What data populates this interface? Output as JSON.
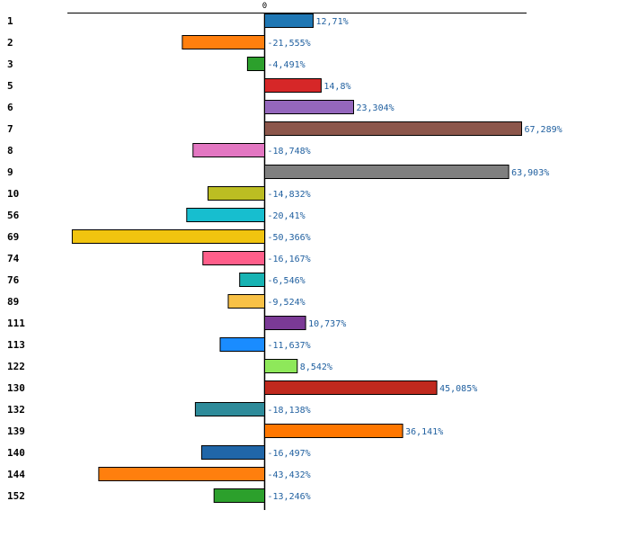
{
  "chart_data": {
    "type": "bar",
    "orientation": "horizontal",
    "title": "",
    "xlabel": "",
    "ylabel": "",
    "zero_tick_label": "0",
    "xlim": [
      -55,
      73
    ],
    "grid": false,
    "categories": [
      "1",
      "2",
      "3",
      "5",
      "6",
      "7",
      "8",
      "9",
      "10",
      "56",
      "69",
      "74",
      "76",
      "89",
      "111",
      "113",
      "122",
      "130",
      "132",
      "139",
      "140",
      "144",
      "152"
    ],
    "values": [
      12.71,
      -21.555,
      -4.491,
      14.8,
      23.304,
      67.289,
      -18.748,
      63.903,
      -14.832,
      -20.41,
      -50.366,
      -16.167,
      -6.546,
      -9.524,
      10.737,
      -11.637,
      8.542,
      45.085,
      -18.138,
      36.141,
      -16.497,
      -43.432,
      -13.246
    ],
    "value_labels": [
      "12,71%",
      "-21,555%",
      "-4,491%",
      "14,8%",
      "23,304%",
      "67,289%",
      "-18,748%",
      "63,903%",
      "-14,832%",
      "-20,41%",
      "-50,366%",
      "-16,167%",
      "-6,546%",
      "-9,524%",
      "10,737%",
      "-11,637%",
      "8,542%",
      "45,085%",
      "-18,138%",
      "36,141%",
      "-16,497%",
      "-43,432%",
      "-13,246%"
    ],
    "colors": [
      "#1f77b4",
      "#ff7f0e",
      "#2ca02c",
      "#d62728",
      "#9467bd",
      "#8c564b",
      "#e377c2",
      "#7f7f7f",
      "#bcbd22",
      "#17becf",
      "#f1c40f",
      "#ff5e8a",
      "#17b3b3",
      "#f8c146",
      "#7b3a96",
      "#1a8cff",
      "#8ee85a",
      "#c0291e",
      "#2e8b9a",
      "#ff7700",
      "#2066a8",
      "#ff7f0e",
      "#2ca02c"
    ]
  }
}
